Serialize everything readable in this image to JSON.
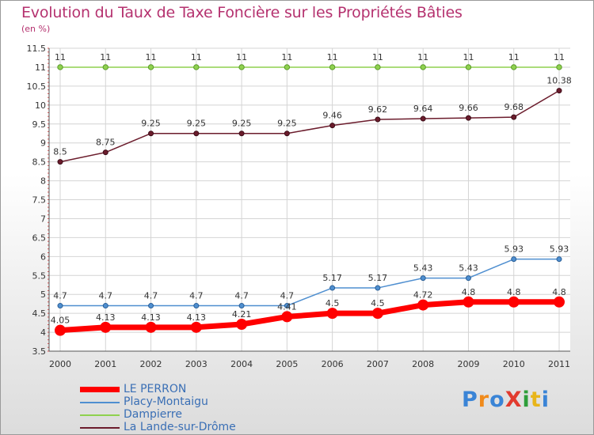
{
  "title": "Evolution du Taux de Taxe Foncière sur les Propriétés Bâties",
  "subtitle": "(en %)",
  "logo": {
    "text": "ProXiti",
    "colors": [
      "#3a84d6",
      "#f08a1a",
      "#3a84d6",
      "#e23b2e",
      "#2e9e3a",
      "#e8b51a",
      "#3a84d6"
    ]
  },
  "chart_data": {
    "type": "line",
    "title": "Evolution du Taux de Taxe Foncière sur les Propriétés Bâties",
    "ylabel": "(en %)",
    "x": [
      "2000",
      "2001",
      "2002",
      "2003",
      "2004",
      "2005",
      "2006",
      "2007",
      "2008",
      "2009",
      "2010",
      "2011"
    ],
    "ylim": [
      3.5,
      11.5
    ],
    "yticks": [
      "3.5",
      "4",
      "4.5",
      "5",
      "5.5",
      "6",
      "6.5",
      "7",
      "7.5",
      "8",
      "8.5",
      "9",
      "9.5",
      "10",
      "10.5",
      "11",
      "11.5"
    ],
    "grid": true,
    "legend_position": "bottom-left",
    "series": [
      {
        "name": "LE PERRON",
        "color": "#ff0000",
        "values": [
          4.05,
          4.13,
          4.13,
          4.13,
          4.21,
          4.41,
          4.5,
          4.5,
          4.72,
          4.8,
          4.8,
          4.8
        ],
        "labels": [
          "4.05",
          "4.13",
          "4.13",
          "4.13",
          "4.21",
          "4.41",
          "4.5",
          "4.5",
          "4.72",
          "4.8",
          "4.8",
          "4.8"
        ]
      },
      {
        "name": "Placy-Montaigu",
        "color": "#4f8fd0",
        "values": [
          4.7,
          4.7,
          4.7,
          4.7,
          4.7,
          4.7,
          5.17,
          5.17,
          5.43,
          5.43,
          5.93,
          5.93
        ],
        "labels": [
          "4.7",
          "4.7",
          "4.7",
          "4.7",
          "4.7",
          "4.7",
          "5.17",
          "5.17",
          "5.43",
          "5.43",
          "5.93",
          "5.93"
        ]
      },
      {
        "name": "Dampierre",
        "color": "#8fd14f",
        "values": [
          11,
          11,
          11,
          11,
          11,
          11,
          11,
          11,
          11,
          11,
          11,
          11
        ],
        "labels": [
          "11",
          "11",
          "11",
          "11",
          "11",
          "11",
          "11",
          "11",
          "11",
          "11",
          "11",
          "11"
        ]
      },
      {
        "name": "La Lande-sur-Drôme",
        "color": "#6b1c2c",
        "values": [
          8.5,
          8.75,
          9.25,
          9.25,
          9.25,
          9.25,
          9.46,
          9.62,
          9.64,
          9.66,
          9.68,
          10.38
        ],
        "labels": [
          "8.5",
          "8.75",
          "9.25",
          "9.25",
          "9.25",
          "9.25",
          "9.46",
          "9.62",
          "9.64",
          "9.66",
          "9.68",
          "10.38"
        ]
      }
    ]
  }
}
